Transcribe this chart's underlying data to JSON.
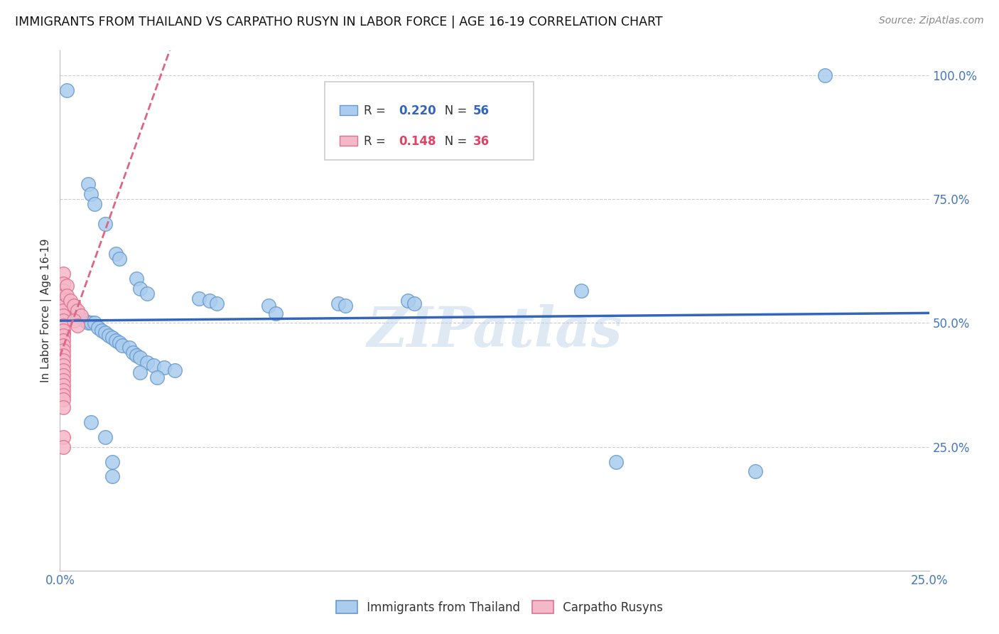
{
  "title": "IMMIGRANTS FROM THAILAND VS CARPATHO RUSYN IN LABOR FORCE | AGE 16-19 CORRELATION CHART",
  "source": "Source: ZipAtlas.com",
  "ylabel": "In Labor Force | Age 16-19",
  "thailand_color": "#aaccee",
  "thailand_edge": "#6699cc",
  "carpatho_color": "#f5b8c8",
  "carpatho_edge": "#e07090",
  "trend_thailand_color": "#3366bb",
  "trend_carpatho_color": "#dd6688",
  "watermark": "ZIPatlas",
  "thailand_points": [
    [
      0.002,
      0.97
    ],
    [
      0.008,
      0.78
    ],
    [
      0.009,
      0.76
    ],
    [
      0.01,
      0.74
    ],
    [
      0.013,
      0.7
    ],
    [
      0.016,
      0.64
    ],
    [
      0.017,
      0.63
    ],
    [
      0.022,
      0.59
    ],
    [
      0.023,
      0.57
    ],
    [
      0.025,
      0.56
    ],
    [
      0.001,
      0.55
    ],
    [
      0.002,
      0.54
    ],
    [
      0.003,
      0.53
    ],
    [
      0.004,
      0.52
    ],
    [
      0.005,
      0.52
    ],
    [
      0.006,
      0.51
    ],
    [
      0.007,
      0.505
    ],
    [
      0.008,
      0.5
    ],
    [
      0.009,
      0.5
    ],
    [
      0.01,
      0.5
    ],
    [
      0.011,
      0.49
    ],
    [
      0.012,
      0.485
    ],
    [
      0.013,
      0.48
    ],
    [
      0.014,
      0.475
    ],
    [
      0.015,
      0.47
    ],
    [
      0.016,
      0.465
    ],
    [
      0.017,
      0.46
    ],
    [
      0.018,
      0.455
    ],
    [
      0.02,
      0.45
    ],
    [
      0.021,
      0.44
    ],
    [
      0.022,
      0.435
    ],
    [
      0.023,
      0.43
    ],
    [
      0.025,
      0.42
    ],
    [
      0.027,
      0.415
    ],
    [
      0.03,
      0.41
    ],
    [
      0.033,
      0.405
    ],
    [
      0.023,
      0.4
    ],
    [
      0.028,
      0.39
    ],
    [
      0.04,
      0.55
    ],
    [
      0.043,
      0.545
    ],
    [
      0.045,
      0.54
    ],
    [
      0.06,
      0.535
    ],
    [
      0.062,
      0.52
    ],
    [
      0.08,
      0.54
    ],
    [
      0.082,
      0.535
    ],
    [
      0.1,
      0.545
    ],
    [
      0.102,
      0.54
    ],
    [
      0.15,
      0.565
    ],
    [
      0.009,
      0.3
    ],
    [
      0.013,
      0.27
    ],
    [
      0.015,
      0.22
    ],
    [
      0.015,
      0.19
    ],
    [
      0.16,
      0.22
    ],
    [
      0.2,
      0.2
    ],
    [
      0.22,
      1.0
    ],
    [
      0.001,
      0.48
    ]
  ],
  "carpatho_points": [
    [
      0.001,
      0.6
    ],
    [
      0.001,
      0.58
    ],
    [
      0.001,
      0.565
    ],
    [
      0.001,
      0.555
    ],
    [
      0.001,
      0.545
    ],
    [
      0.001,
      0.535
    ],
    [
      0.001,
      0.525
    ],
    [
      0.001,
      0.515
    ],
    [
      0.001,
      0.505
    ],
    [
      0.001,
      0.495
    ],
    [
      0.001,
      0.485
    ],
    [
      0.001,
      0.475
    ],
    [
      0.001,
      0.465
    ],
    [
      0.001,
      0.455
    ],
    [
      0.001,
      0.445
    ],
    [
      0.001,
      0.435
    ],
    [
      0.001,
      0.425
    ],
    [
      0.001,
      0.415
    ],
    [
      0.001,
      0.405
    ],
    [
      0.001,
      0.395
    ],
    [
      0.001,
      0.385
    ],
    [
      0.001,
      0.375
    ],
    [
      0.001,
      0.365
    ],
    [
      0.001,
      0.355
    ],
    [
      0.001,
      0.345
    ],
    [
      0.001,
      0.33
    ],
    [
      0.001,
      0.27
    ],
    [
      0.001,
      0.25
    ],
    [
      0.002,
      0.575
    ],
    [
      0.002,
      0.555
    ],
    [
      0.003,
      0.545
    ],
    [
      0.004,
      0.535
    ],
    [
      0.005,
      0.525
    ],
    [
      0.006,
      0.515
    ],
    [
      0.004,
      0.505
    ],
    [
      0.005,
      0.495
    ]
  ],
  "xlim": [
    0.0,
    0.25
  ],
  "ylim": [
    0.0,
    1.05
  ],
  "ytick_vals": [
    0.0,
    0.25,
    0.5,
    0.75,
    1.0
  ],
  "ytick_labels": [
    "",
    "25.0%",
    "50.0%",
    "75.0%",
    "100.0%"
  ],
  "xtick_vals": [
    0.0,
    0.025,
    0.05,
    0.075,
    0.1,
    0.125,
    0.15,
    0.175,
    0.2,
    0.225,
    0.25
  ],
  "xtick_labels": [
    "0.0%",
    "",
    "",
    "",
    "",
    "",
    "",
    "",
    "",
    "",
    "25.0%"
  ],
  "legend_r1": "0.220",
  "legend_n1": "56",
  "legend_r2": "0.148",
  "legend_n2": "36"
}
